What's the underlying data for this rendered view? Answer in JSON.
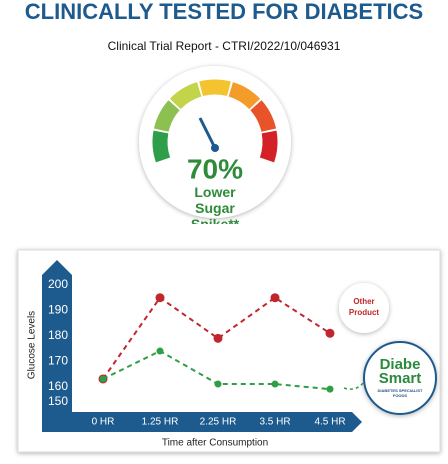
{
  "header": {
    "title": "CLINICALLY TESTED FOR DIABETICS",
    "subtitle": "Clinical Trial Report - CTRI/2022/10/046931"
  },
  "gauge": {
    "value_text": "70%",
    "caption": "Lower Sugar Spike**"
  },
  "logo_tagline": "DIABETES SPECIALIST FOODS",
  "chart_data": {
    "type": "line",
    "categories": [
      "0 HR",
      "1.25 HR",
      "2.25 HR",
      "3.5 HR",
      "4.5 HR"
    ],
    "series": [
      {
        "name": "Other Product",
        "color": "#c0272d",
        "values": [
          163,
          195,
          179,
          195,
          181
        ]
      },
      {
        "name": "Diabe Smart",
        "color": "#2f9e44",
        "values": [
          163,
          174,
          161,
          161,
          159
        ]
      }
    ],
    "ylim": [
      150,
      200
    ],
    "yticks": [
      150,
      160,
      170,
      180,
      190,
      200
    ],
    "y_label": "Glucose Levels",
    "x_label": "Time after Consumption",
    "grid": false
  }
}
